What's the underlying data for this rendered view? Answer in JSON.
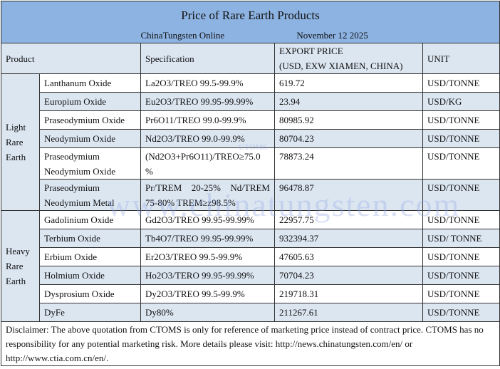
{
  "title": "Price of Rare Earth Products",
  "source": "ChinaTungsten Online",
  "date": "November 12 2025",
  "headers": {
    "product": "Product",
    "specification": "Specification",
    "price_line1": "EXPORT PRICE",
    "price_line2": "(USD, EXW XIAMEN, CHINA)",
    "unit": "UNIT"
  },
  "groups": [
    {
      "label_lines": [
        "Light",
        "Rare",
        "Earth"
      ],
      "rows": [
        {
          "product": "Lanthanum Oxide",
          "spec": "La2O3/TREO 99.5-99.9%",
          "price": "619.72",
          "unit": "USD/TONNE"
        },
        {
          "product": "Europium Oxide",
          "spec": "Eu2O3/TREO 99.95-99.99%",
          "price": "23.94",
          "unit": "USD/KG"
        },
        {
          "product": "Praseodymium Oxide",
          "spec": "Pr6O11/TREO 99.0-99.9%",
          "price": "80985.92",
          "unit": "USD/TONNE"
        },
        {
          "product": "Neodymium Oxide",
          "spec": "Nd2O3/TREO 99.0-99.9%",
          "price": "80704.23",
          "unit": "USD/TONNE"
        },
        {
          "product": "Praseodymium Neodymium Oxide",
          "spec": "(Nd2O3+Pr6O11)/TREO≥75.0 %",
          "price": "78873.24",
          "unit": "USD/TONNE"
        },
        {
          "product": "Praseodymium Neodymium Metal",
          "spec": "Pr/TREM 20-25% Nd/TREM 75-80% TREM≥z98.5%",
          "price": "96478.87",
          "unit": "USD/TONNE"
        }
      ]
    },
    {
      "label_lines": [
        "Heavy",
        "Rare",
        "Earth"
      ],
      "rows": [
        {
          "product": "Gadolinium Oxide",
          "spec": "Gd2O3/TREO 99.95-99.99%",
          "price": "22957.75",
          "unit": "USD/TONNE"
        },
        {
          "product": "Terbium Oxide",
          "spec": "Tb4O7/TREO 99.95-99.99%",
          "price": "932394.37",
          "unit": "USD/ TONNE"
        },
        {
          "product": "Erbium Oxide",
          "spec": "Er2O3/TREO 99.5-99.9%",
          "price": "47605.63",
          "unit": "USD/TONNE"
        },
        {
          "product": "Holmium Oxide",
          "spec": "Ho2O3/TERO 99.95-99.99%",
          "price": "70704.23",
          "unit": "USD/TONNE"
        },
        {
          "product": "Dysprosium Oxide",
          "spec": "Dy2O3/TREO 99.5-99.9%",
          "price": "219718.31",
          "unit": "USD/TONNE"
        },
        {
          "product": "DyFe",
          "spec": "Dy80%",
          "price": "211267.61",
          "unit": "USD/TONNE"
        }
      ]
    }
  ],
  "disclaimer": "Disclaimer: The above quotation from CTOMS is only for reference of marketing price instead of contract price. CTOMS has no responsibility for any potential marketing risk. More details please visit:    http://news.chinatungsten.com/en/ or http://www.ctia.com.cn/en/.",
  "watermark": {
    "text": "www.chinatungsten.com",
    "logo": "CTOMS"
  },
  "colors": {
    "title_bg": "#8db3e2",
    "alt_row_bg": "#dce6f1"
  }
}
